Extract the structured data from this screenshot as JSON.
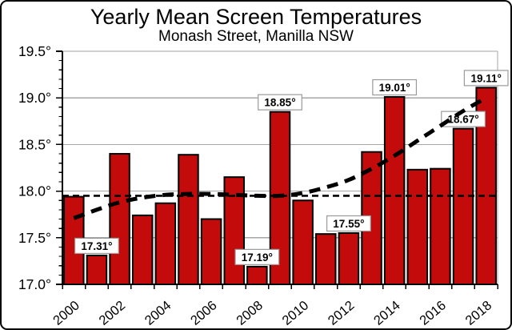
{
  "chart_data": {
    "type": "bar",
    "title": "Yearly Mean Screen Temperatures",
    "subtitle": "Monash Street, Manilla NSW",
    "categories": [
      2000,
      2001,
      2002,
      2003,
      2004,
      2005,
      2006,
      2007,
      2008,
      2009,
      2010,
      2011,
      2012,
      2013,
      2014,
      2015,
      2016,
      2017,
      2018
    ],
    "values": [
      17.94,
      17.31,
      18.4,
      17.74,
      17.87,
      18.39,
      17.7,
      18.15,
      17.19,
      18.85,
      17.9,
      17.54,
      17.55,
      18.42,
      19.01,
      18.23,
      18.24,
      18.67,
      19.11
    ],
    "unit": "°",
    "ylim": [
      17.0,
      19.5
    ],
    "ytick_step": 0.5,
    "minor_tick_step": 0.1,
    "ytick_labels": [
      "17.0°",
      "17.5°",
      "18.0°",
      "18.5°",
      "19.0°",
      "19.5°"
    ],
    "xtick_labels": [
      "2000",
      "2002",
      "2004",
      "2006",
      "2008",
      "2010",
      "2012",
      "2014",
      "2016",
      "2018"
    ],
    "point_labels": [
      {
        "category": 2001,
        "text": "17.31°"
      },
      {
        "category": 2008,
        "text": "17.19°"
      },
      {
        "category": 2009,
        "text": "18.85°"
      },
      {
        "category": 2012,
        "text": "17.55°"
      },
      {
        "category": 2014,
        "text": "19.01°"
      },
      {
        "category": 2017,
        "text": "18.67°"
      },
      {
        "category": 2018,
        "text": "19.11°"
      }
    ],
    "mean_line": {
      "value": 17.95,
      "style": "dashed-thin"
    },
    "trend_line": {
      "style": "dashed-thick",
      "points": [
        [
          2000,
          17.71
        ],
        [
          2001,
          17.8
        ],
        [
          2002,
          17.88
        ],
        [
          2003,
          17.93
        ],
        [
          2004,
          17.96
        ],
        [
          2005,
          17.97
        ],
        [
          2006,
          17.97
        ],
        [
          2007,
          17.96
        ],
        [
          2008,
          17.95
        ],
        [
          2009,
          17.95
        ],
        [
          2010,
          17.98
        ],
        [
          2011,
          18.04
        ],
        [
          2012,
          18.12
        ],
        [
          2013,
          18.24
        ],
        [
          2014,
          18.38
        ],
        [
          2015,
          18.54
        ],
        [
          2016,
          18.7
        ],
        [
          2017,
          18.86
        ],
        [
          2018,
          19.0
        ]
      ]
    },
    "grid": true,
    "legend": false,
    "colors": {
      "bar_fill": "#c20b0a",
      "bar_border": "#000000",
      "grid_line": "#a6a6a6",
      "axis": "#000000",
      "mean_line": "#000000",
      "trend_line": "#000000",
      "label_box_bg": "#ffffff",
      "label_box_border": "#9a9a9a",
      "background": "#ffffff",
      "text": "#000000"
    }
  }
}
